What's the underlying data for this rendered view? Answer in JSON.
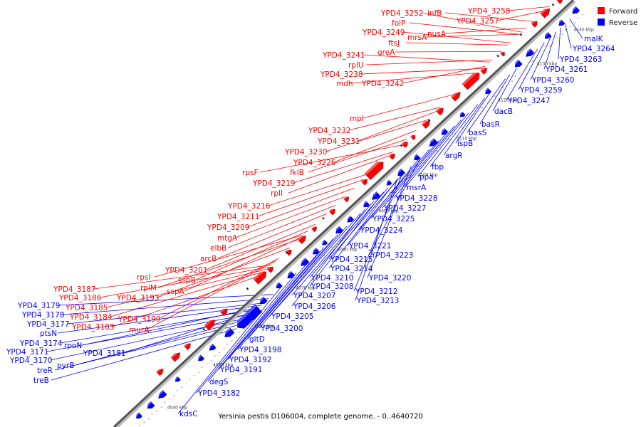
{
  "caption": "Yersinia pestis D106004, complete genome. - 0..4640720",
  "legend": {
    "forward_label": "Forward",
    "reverse_label": "Reverse",
    "forward_color": "#ff0000",
    "reverse_color": "#0000ff"
  },
  "ticks": [
    "4040 kbp",
    "4050 kbp",
    "4060 kbp",
    "4070 kbp",
    "4080 kbp",
    "4090 kbp",
    "4100 kbp",
    "4110 kbp",
    "4120 kbp",
    "4130 kbp",
    "4140 kbp"
  ],
  "forward_labels": [
    "YPD4_3252",
    "infB",
    "YPD4_3258",
    "folP",
    "YPD4_3257",
    "nusA",
    "YPD4_3249",
    "mrsA",
    "ftsJ",
    "greA",
    "YPD4_3241",
    "rplU",
    "YPD4_3238",
    "YPD4_3242",
    "mdh",
    "mpl",
    "YPD4_3232",
    "YPD4_3231",
    "YPD4_3230",
    "YPD4_3226",
    "rpsF",
    "fklB",
    "YPD4_3219",
    "rplI",
    "YPD4_3216",
    "YPD4_3211",
    "YPD4_3209",
    "mtgA",
    "elbB",
    "arcB",
    "YPD4_3201",
    "rpsI",
    "sspB",
    "rplM",
    "YPD4_3193",
    "sspA",
    "YPD4_3187",
    "YPD4_3186",
    "YPD4_3185",
    "YPD4_3184",
    "YPD4_3190",
    "YPD4_3183",
    "murA"
  ],
  "reverse_labels": [
    "malK",
    "YPD4_3264",
    "YPD4_3263",
    "YPD4_3261",
    "YPD4_3260",
    "YPD4_3259",
    "YPD4_3247",
    "dacB",
    "basR",
    "basS",
    "ispB",
    "argR",
    "fbp",
    "ppa",
    "msrA",
    "YPD4_3228",
    "YPD4_3227",
    "YPD4_3225",
    "YPD4_3224",
    "YPD4_3221",
    "YPD4_3223",
    "YPD4_3215",
    "YPD4_3214",
    "YPD4_3220",
    "YPD4_3210",
    "YPD4_3208",
    "YPD4_3212",
    "YPD4_3207",
    "YPD4_3213",
    "YPD4_3206",
    "YPD4_3205",
    "YPD4_3200",
    "gltD",
    "YPD4_3198",
    "YPD4_3192",
    "YPD4_3191",
    "degS",
    "YPD4_3182",
    "kdsC",
    "YPD4_3179",
    "YPD4_3178",
    "YPD4_3177",
    "ptsN",
    "rpoN",
    "YPD4_3174",
    "YPD4_3171",
    "YPD4_3181",
    "YPD4_3170",
    "pyrB",
    "treR",
    "treB"
  ]
}
